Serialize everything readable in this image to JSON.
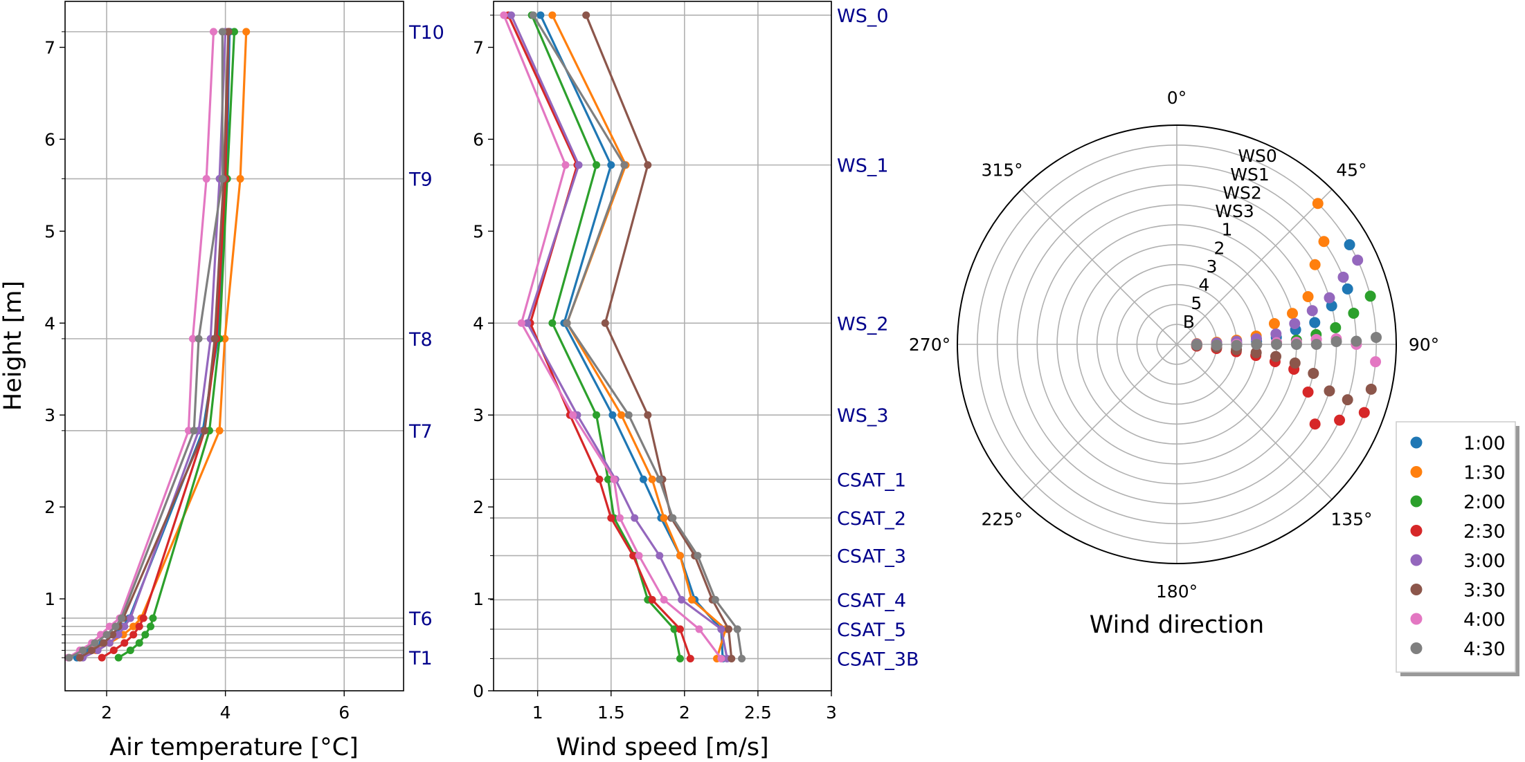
{
  "chart_data": [
    {
      "type": "line",
      "xlabel": "Air temperature [°C]",
      "ylabel": "Height [m]",
      "xlim": [
        1.3,
        7.0
      ],
      "ylim": [
        0.0,
        7.5
      ],
      "xticks": [
        2,
        4,
        6
      ],
      "yticks": [
        1,
        2,
        3,
        4,
        5,
        6,
        7
      ],
      "grid": true,
      "heights": [
        0.36,
        0.44,
        0.52,
        0.61,
        0.7,
        0.79,
        2.83,
        3.83,
        5.57,
        7.17
      ],
      "level_labels": [
        {
          "label": "T10",
          "y": 7.17
        },
        {
          "label": "T9",
          "y": 5.57
        },
        {
          "label": "T8",
          "y": 3.83
        },
        {
          "label": "T7",
          "y": 2.83
        },
        {
          "label": "T6",
          "y": 0.79
        },
        {
          "label": "T1",
          "y": 0.36
        }
      ],
      "series": [
        {
          "name": "1:00",
          "values": [
            1.5,
            1.72,
            1.93,
            2.12,
            2.27,
            2.38,
            3.62,
            3.87,
            4.02,
            4.07
          ]
        },
        {
          "name": "1:30",
          "values": [
            1.55,
            1.82,
            2.05,
            2.28,
            2.45,
            2.58,
            3.9,
            3.99,
            4.25,
            4.35
          ]
        },
        {
          "name": "2:00",
          "values": [
            2.2,
            2.4,
            2.55,
            2.65,
            2.74,
            2.78,
            3.73,
            3.9,
            4.03,
            4.15
          ]
        },
        {
          "name": "2:30",
          "values": [
            1.92,
            2.12,
            2.3,
            2.45,
            2.55,
            2.62,
            3.65,
            3.85,
            4.0,
            4.05
          ]
        },
        {
          "name": "3:00",
          "values": [
            1.6,
            1.85,
            2.05,
            2.2,
            2.3,
            2.4,
            3.55,
            3.75,
            3.9,
            4.0
          ]
        },
        {
          "name": "3:30",
          "values": [
            1.55,
            1.75,
            1.95,
            2.1,
            2.2,
            2.28,
            3.65,
            3.82,
            3.97,
            4.05
          ]
        },
        {
          "name": "4:00",
          "values": [
            1.35,
            1.55,
            1.75,
            1.9,
            2.05,
            2.22,
            3.38,
            3.45,
            3.68,
            3.8
          ]
        },
        {
          "name": "4:30",
          "values": [
            1.37,
            1.6,
            1.8,
            2.0,
            2.15,
            2.25,
            3.47,
            3.55,
            3.95,
            3.95
          ]
        }
      ]
    },
    {
      "type": "line",
      "xlabel": "Wind speed [m/s]",
      "ylabel": "",
      "xlim": [
        0.7,
        3.0
      ],
      "ylim": [
        0.0,
        7.5
      ],
      "xticks": [
        1.0,
        1.5,
        2.0,
        2.5,
        3.0
      ],
      "yticks": [
        0,
        1,
        2,
        3,
        4,
        5,
        6,
        7
      ],
      "grid": true,
      "heights": [
        0.35,
        0.67,
        0.99,
        1.47,
        1.88,
        2.3,
        3.0,
        4.0,
        5.72,
        7.35
      ],
      "level_labels": [
        {
          "label": "WS_0",
          "y": 7.35
        },
        {
          "label": "WS_1",
          "y": 5.72
        },
        {
          "label": "WS_2",
          "y": 4.0
        },
        {
          "label": "WS_3",
          "y": 3.0
        },
        {
          "label": "CSAT_1",
          "y": 2.3
        },
        {
          "label": "CSAT_2",
          "y": 1.88
        },
        {
          "label": "CSAT_3",
          "y": 1.47
        },
        {
          "label": "CSAT_4",
          "y": 0.99
        },
        {
          "label": "CSAT_5",
          "y": 0.67
        },
        {
          "label": "CSAT_3B",
          "y": 0.35
        }
      ],
      "series": [
        {
          "name": "1:00",
          "values": [
            2.26,
            2.25,
            2.07,
            1.97,
            1.84,
            1.72,
            1.51,
            1.18,
            1.5,
            1.02
          ]
        },
        {
          "name": "1:30",
          "values": [
            2.22,
            2.28,
            2.05,
            1.97,
            1.86,
            1.78,
            1.57,
            1.2,
            1.6,
            1.1
          ]
        },
        {
          "name": "2:00",
          "values": [
            1.97,
            1.93,
            1.75,
            1.66,
            1.52,
            1.48,
            1.4,
            1.1,
            1.4,
            0.96
          ]
        },
        {
          "name": "2:30",
          "values": [
            2.04,
            1.97,
            1.78,
            1.65,
            1.5,
            1.42,
            1.22,
            0.95,
            1.27,
            0.8
          ]
        },
        {
          "name": "3:00",
          "values": [
            2.29,
            2.25,
            1.98,
            1.83,
            1.66,
            1.53,
            1.27,
            0.93,
            1.28,
            0.82
          ]
        },
        {
          "name": "3:30",
          "values": [
            2.32,
            2.3,
            2.19,
            2.07,
            1.91,
            1.85,
            1.75,
            1.46,
            1.75,
            1.33
          ]
        },
        {
          "name": "4:00",
          "values": [
            2.25,
            2.1,
            1.86,
            1.69,
            1.56,
            1.52,
            1.24,
            0.89,
            1.19,
            0.77
          ]
        },
        {
          "name": "4:30",
          "values": [
            2.39,
            2.36,
            2.21,
            2.09,
            1.92,
            1.83,
            1.62,
            1.2,
            1.59,
            0.97
          ]
        }
      ]
    },
    {
      "type": "scatter",
      "subtype": "polar",
      "xlabel": "Wind direction",
      "theta_direction": "clockwise",
      "theta_zero": "north",
      "angle_ticks": [
        "0°",
        "45°",
        "90°",
        "135°",
        "180°",
        "225°",
        "270°",
        "315°"
      ],
      "rings": 10,
      "radial_tick_labels": [
        "B",
        "5",
        "4",
        "3",
        "2",
        "1",
        "WS3",
        "WS2",
        "WS1",
        "WS0"
      ],
      "legend_position": "lower-right, outside",
      "series": [
        {
          "name": "1:00",
          "directions_deg": [
            90,
            90,
            89,
            88,
            86,
            83,
            81,
            76,
            72,
            60
          ]
        },
        {
          "name": "1:30",
          "directions_deg": [
            88,
            87,
            86,
            84,
            78,
            75,
            70,
            60,
            55,
            45
          ]
        },
        {
          "name": "2:00",
          "directions_deg": [
            92,
            91,
            91,
            90,
            89,
            88,
            86,
            84,
            80,
            76
          ]
        },
        {
          "name": "2:30",
          "directions_deg": [
            95,
            96,
            97,
            98,
            100,
            102,
            110,
            120,
            115,
            110
          ]
        },
        {
          "name": "3:00",
          "directions_deg": [
            89,
            88,
            87,
            86,
            84,
            80,
            76,
            73,
            68,
            65
          ]
        },
        {
          "name": "3:30",
          "directions_deg": [
            93,
            94,
            95,
            96,
            97,
            99,
            102,
            107,
            108,
            103
          ]
        },
        {
          "name": "4:00",
          "directions_deg": [
            91,
            91,
            90,
            90,
            89,
            89,
            88,
            88,
            90,
            95
          ]
        },
        {
          "name": "4:30",
          "directions_deg": [
            91,
            91,
            91,
            90,
            90,
            90,
            90,
            89,
            89,
            88
          ]
        }
      ]
    }
  ],
  "legend": [
    {
      "label": "1:00",
      "color": "#1f77b4"
    },
    {
      "label": "1:30",
      "color": "#ff7f0e"
    },
    {
      "label": "2:00",
      "color": "#2ca02c"
    },
    {
      "label": "2:30",
      "color": "#d62728"
    },
    {
      "label": "3:00",
      "color": "#9467bd"
    },
    {
      "label": "3:30",
      "color": "#8c564b"
    },
    {
      "label": "4:00",
      "color": "#e377c2"
    },
    {
      "label": "4:30",
      "color": "#7f7f7f"
    }
  ],
  "colors": {
    "level_label": "#00008b",
    "grid": "#b0b0b0"
  }
}
